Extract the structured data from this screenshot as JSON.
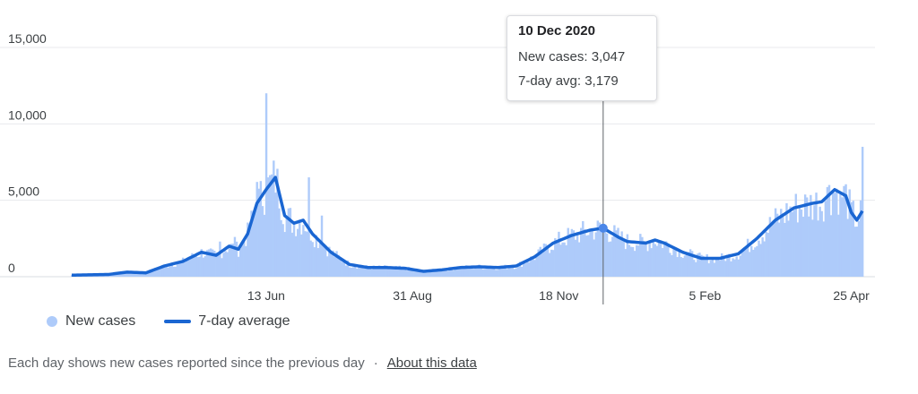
{
  "chart_data": {
    "type": "bar",
    "y_ticks": [
      {
        "label": "15,000",
        "value": 15000
      },
      {
        "label": "10,000",
        "value": 10000
      },
      {
        "label": "5,000",
        "value": 5000
      },
      {
        "label": "0",
        "value": 0
      }
    ],
    "ylim": [
      0,
      15000
    ],
    "x_ticks": [
      {
        "label": "13 Jun",
        "index": 105
      },
      {
        "label": "31 Aug",
        "index": 184
      },
      {
        "label": "18 Nov",
        "index": 263
      },
      {
        "label": "5 Feb",
        "index": 342
      },
      {
        "label": "25 Apr",
        "index": 421
      }
    ],
    "grid": true,
    "legend_position": "bottom-left",
    "series": [
      {
        "name": "New cases",
        "type": "bar",
        "color": "#aecbfa"
      },
      {
        "name": "7-day average",
        "type": "line",
        "color": "#1a66d2"
      }
    ],
    "avg_anchors": [
      [
        0,
        100
      ],
      [
        20,
        150
      ],
      [
        30,
        300
      ],
      [
        40,
        250
      ],
      [
        50,
        700
      ],
      [
        60,
        1000
      ],
      [
        70,
        1600
      ],
      [
        78,
        1400
      ],
      [
        85,
        2000
      ],
      [
        90,
        1800
      ],
      [
        95,
        2800
      ],
      [
        100,
        4800
      ],
      [
        105,
        5700
      ],
      [
        110,
        6500
      ],
      [
        115,
        4000
      ],
      [
        120,
        3500
      ],
      [
        125,
        3700
      ],
      [
        130,
        2800
      ],
      [
        140,
        1600
      ],
      [
        150,
        800
      ],
      [
        160,
        600
      ],
      [
        170,
        600
      ],
      [
        180,
        550
      ],
      [
        190,
        350
      ],
      [
        200,
        450
      ],
      [
        210,
        600
      ],
      [
        220,
        650
      ],
      [
        230,
        600
      ],
      [
        240,
        700
      ],
      [
        250,
        1300
      ],
      [
        260,
        2200
      ],
      [
        270,
        2700
      ],
      [
        280,
        3050
      ],
      [
        287,
        3179
      ],
      [
        295,
        2600
      ],
      [
        300,
        2300
      ],
      [
        310,
        2200
      ],
      [
        315,
        2400
      ],
      [
        320,
        2200
      ],
      [
        330,
        1600
      ],
      [
        340,
        1200
      ],
      [
        350,
        1200
      ],
      [
        360,
        1500
      ],
      [
        370,
        2500
      ],
      [
        380,
        3700
      ],
      [
        390,
        4500
      ],
      [
        400,
        4800
      ],
      [
        405,
        4900
      ],
      [
        412,
        5700
      ],
      [
        418,
        5300
      ],
      [
        421,
        4200
      ],
      [
        424,
        3700
      ],
      [
        427,
        4300
      ]
    ],
    "spikes": [
      [
        105,
        12000
      ],
      [
        128,
        6500
      ],
      [
        135,
        4000
      ],
      [
        118,
        4500
      ],
      [
        427,
        8500
      ],
      [
        88,
        2600
      ],
      [
        80,
        2300
      ],
      [
        409,
        6000
      ],
      [
        415,
        5400
      ],
      [
        100,
        6200
      ]
    ],
    "highlight": {
      "index": 287,
      "date": "10 Dec 2020",
      "new_cases": 3047,
      "avg": 3179
    }
  },
  "tooltip": {
    "date": "10 Dec 2020",
    "new_cases_text": "New cases: 3,047",
    "avg_text": "7-day avg: 3,179"
  },
  "legend": {
    "new_cases": "New cases",
    "average": "7-day average"
  },
  "footer": {
    "note": "Each day shows new cases reported since the previous day",
    "separator": "·",
    "link": "About this data"
  },
  "colors": {
    "bar": "#aecbfa",
    "line": "#1a66d2",
    "grid": "#e8eaed",
    "cursor": "#5f6368"
  }
}
